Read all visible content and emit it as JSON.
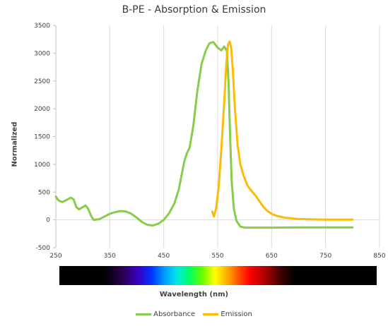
{
  "chart_data": {
    "type": "line",
    "title": "B-PE - Absorption & Emission",
    "xlabel": "Wavelength (nm)",
    "ylabel": "Normalized",
    "xlim": [
      250,
      850
    ],
    "ylim": [
      -500,
      3500
    ],
    "x_ticks": [
      "250",
      "350",
      "450",
      "550",
      "650",
      "750",
      "850"
    ],
    "y_ticks": [
      "3500",
      "3000",
      "2500",
      "2000",
      "1500",
      "1000",
      "500",
      "0",
      "-500"
    ],
    "grid": "vertical",
    "legend_position": "bottom",
    "series": [
      {
        "name": "Absorbance",
        "color": "#88cc4c",
        "points": [
          [
            250,
            420
          ],
          [
            255,
            350
          ],
          [
            262,
            320
          ],
          [
            270,
            360
          ],
          [
            278,
            400
          ],
          [
            283,
            370
          ],
          [
            288,
            230
          ],
          [
            293,
            190
          ],
          [
            300,
            230
          ],
          [
            305,
            260
          ],
          [
            310,
            200
          ],
          [
            315,
            80
          ],
          [
            320,
            0
          ],
          [
            330,
            10
          ],
          [
            340,
            60
          ],
          [
            350,
            110
          ],
          [
            360,
            140
          ],
          [
            370,
            160
          ],
          [
            380,
            150
          ],
          [
            390,
            110
          ],
          [
            400,
            40
          ],
          [
            410,
            -40
          ],
          [
            420,
            -90
          ],
          [
            430,
            -100
          ],
          [
            440,
            -70
          ],
          [
            450,
            0
          ],
          [
            460,
            120
          ],
          [
            470,
            300
          ],
          [
            478,
            550
          ],
          [
            483,
            800
          ],
          [
            488,
            1050
          ],
          [
            493,
            1200
          ],
          [
            498,
            1300
          ],
          [
            505,
            1700
          ],
          [
            512,
            2300
          ],
          [
            520,
            2800
          ],
          [
            528,
            3050
          ],
          [
            535,
            3180
          ],
          [
            542,
            3200
          ],
          [
            550,
            3100
          ],
          [
            557,
            3050
          ],
          [
            562,
            3120
          ],
          [
            567,
            3040
          ],
          [
            570,
            2500
          ],
          [
            573,
            1500
          ],
          [
            576,
            700
          ],
          [
            580,
            200
          ],
          [
            585,
            -20
          ],
          [
            592,
            -120
          ],
          [
            600,
            -140
          ],
          [
            650,
            -140
          ],
          [
            700,
            -135
          ],
          [
            750,
            -135
          ],
          [
            800,
            -135
          ]
        ]
      },
      {
        "name": "Emission",
        "color": "#fbbc05",
        "points": [
          [
            540,
            150
          ],
          [
            543,
            60
          ],
          [
            547,
            200
          ],
          [
            552,
            600
          ],
          [
            557,
            1300
          ],
          [
            562,
            2100
          ],
          [
            566,
            2800
          ],
          [
            569,
            3150
          ],
          [
            572,
            3210
          ],
          [
            575,
            3100
          ],
          [
            578,
            2700
          ],
          [
            582,
            2000
          ],
          [
            587,
            1350
          ],
          [
            592,
            1000
          ],
          [
            598,
            800
          ],
          [
            605,
            620
          ],
          [
            612,
            530
          ],
          [
            620,
            440
          ],
          [
            628,
            330
          ],
          [
            635,
            230
          ],
          [
            642,
            160
          ],
          [
            650,
            110
          ],
          [
            660,
            70
          ],
          [
            675,
            40
          ],
          [
            700,
            15
          ],
          [
            750,
            5
          ],
          [
            800,
            5
          ]
        ]
      }
    ]
  }
}
